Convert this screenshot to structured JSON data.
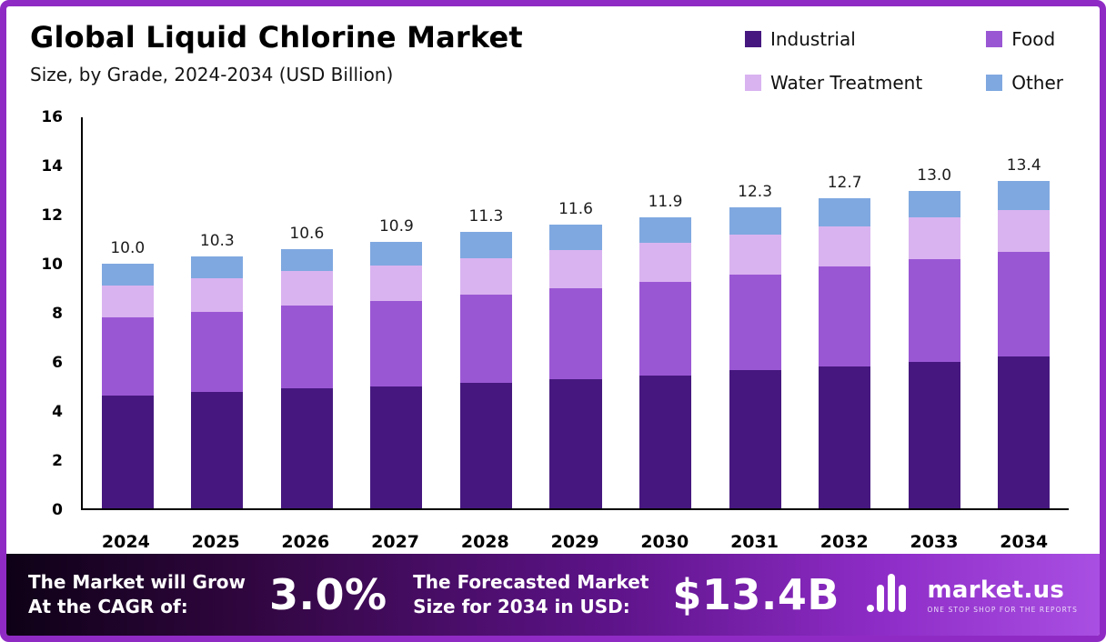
{
  "header": {
    "title": "Global Liquid Chlorine Market",
    "subtitle": "Size, by Grade, 2024-2034 (USD Billion)"
  },
  "legend": [
    {
      "label": "Industrial",
      "color": "#46187f"
    },
    {
      "label": "Food",
      "color": "#9a57d4"
    },
    {
      "label": "Water Treatment",
      "color": "#d9b3f0"
    },
    {
      "label": "Other",
      "color": "#7fa8e0"
    }
  ],
  "chart_data": {
    "type": "bar",
    "stacked": true,
    "title": "Global Liquid Chlorine Market Size, by Grade, 2024-2034 (USD Billion)",
    "xlabel": "",
    "ylabel": "",
    "ylim": [
      0,
      16
    ],
    "yticks": [
      0,
      2,
      4,
      6,
      8,
      10,
      12,
      14,
      16
    ],
    "grid": false,
    "legend_position": "top-right",
    "categories": [
      "2024",
      "2025",
      "2026",
      "2027",
      "2028",
      "2029",
      "2030",
      "2031",
      "2032",
      "2033",
      "2034"
    ],
    "series": [
      {
        "name": "Industrial",
        "color": "#46187f",
        "values": [
          4.6,
          4.75,
          4.9,
          5.0,
          5.15,
          5.3,
          5.45,
          5.65,
          5.8,
          6.0,
          6.2
        ]
      },
      {
        "name": "Food",
        "color": "#9a57d4",
        "values": [
          3.2,
          3.3,
          3.4,
          3.5,
          3.6,
          3.7,
          3.8,
          3.9,
          4.1,
          4.2,
          4.3
        ]
      },
      {
        "name": "Water Treatment",
        "color": "#d9b3f0",
        "values": [
          1.3,
          1.35,
          1.4,
          1.45,
          1.5,
          1.55,
          1.6,
          1.65,
          1.65,
          1.7,
          1.7
        ]
      },
      {
        "name": "Other",
        "color": "#7fa8e0",
        "values": [
          0.9,
          0.9,
          0.9,
          0.95,
          1.05,
          1.05,
          1.05,
          1.1,
          1.15,
          1.1,
          1.2
        ]
      }
    ],
    "totals": [
      10.0,
      10.3,
      10.6,
      10.9,
      11.3,
      11.6,
      11.9,
      12.3,
      12.7,
      13.0,
      13.4
    ]
  },
  "footer": {
    "cagr_label": "The Market will Grow\nAt the CAGR of:",
    "cagr_value": "3.0%",
    "forecast_label": "The Forecasted Market\nSize for 2034 in USD:",
    "forecast_value": "$13.4B",
    "brand": "market.us",
    "brand_tagline": "ONE STOP SHOP FOR THE REPORTS"
  }
}
